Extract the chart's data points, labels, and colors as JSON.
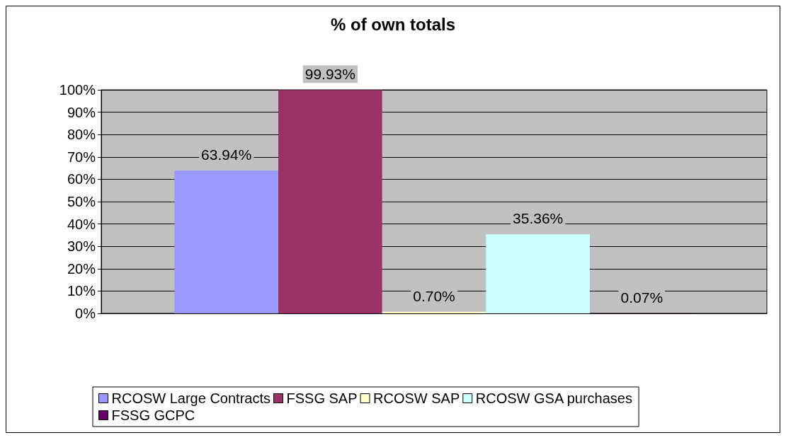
{
  "chart_data": {
    "type": "bar",
    "title": "% of own totals",
    "categories": [
      null
    ],
    "series": [
      {
        "name": "RCOSW Large Contracts",
        "color": "#9999ff",
        "values": [
          63.94
        ],
        "value_labels": [
          "63.94%"
        ]
      },
      {
        "name": "FSSG SAP",
        "color": "#993366",
        "values": [
          99.93
        ],
        "value_labels": [
          "99.93%"
        ]
      },
      {
        "name": "RCOSW SAP",
        "color": "#ffffcc",
        "values": [
          0.7
        ],
        "value_labels": [
          "0.70%"
        ]
      },
      {
        "name": "RCOSW GSA purchases",
        "color": "#ccffff",
        "values": [
          35.36
        ],
        "value_labels": [
          "35.36%"
        ]
      },
      {
        "name": "FSSG GCPC",
        "color": "#660066",
        "values": [
          0.07
        ],
        "value_labels": [
          "0.07%"
        ]
      }
    ],
    "ylim": [
      0,
      100
    ],
    "yticks": [
      {
        "value": 0,
        "label": "0%"
      },
      {
        "value": 10,
        "label": "10%"
      },
      {
        "value": 20,
        "label": "20%"
      },
      {
        "value": 30,
        "label": "30%"
      },
      {
        "value": 40,
        "label": "40%"
      },
      {
        "value": 50,
        "label": "50%"
      },
      {
        "value": 60,
        "label": "60%"
      },
      {
        "value": 70,
        "label": "70%"
      },
      {
        "value": 80,
        "label": "80%"
      },
      {
        "value": 90,
        "label": "90%"
      },
      {
        "value": 100,
        "label": "100%"
      }
    ],
    "grid": "y",
    "legend": "bottom"
  }
}
